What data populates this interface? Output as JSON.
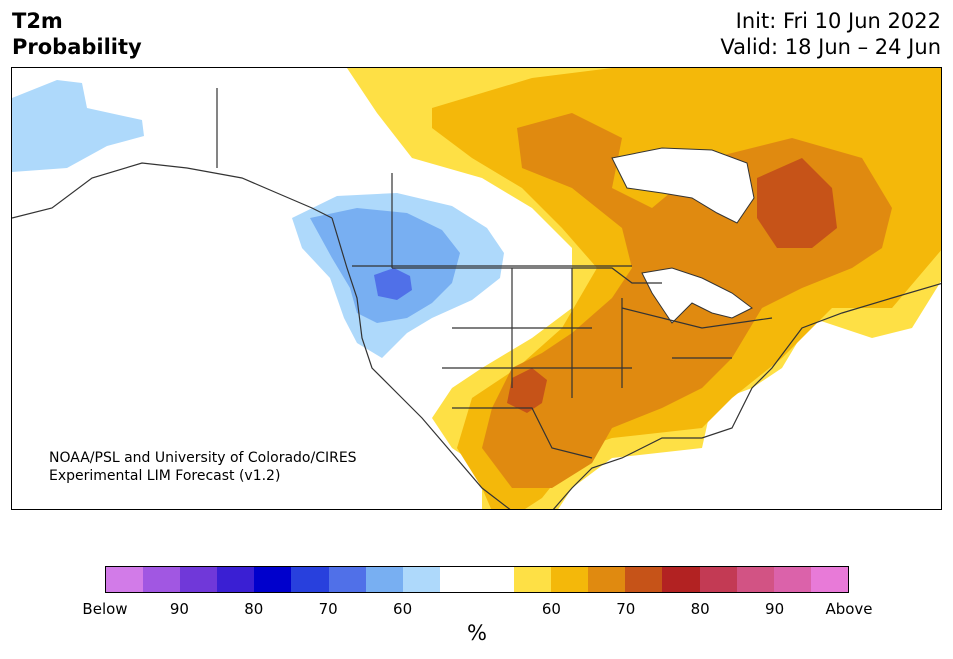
{
  "header": {
    "variable": "T2m",
    "kind": "Probability",
    "init": "Init: Fri 10 Jun 2022",
    "valid": "Valid: 18 Jun – 24 Jun"
  },
  "credit": {
    "line1": "NOAA/PSL and University of Colorado/CIRES",
    "line2": "Experimental LIM Forecast (v1.2)"
  },
  "colorbar": {
    "colors": [
      "#d27be8",
      "#a157e2",
      "#7038d9",
      "#3a1fd3",
      "#0000cc",
      "#2840dd",
      "#5070e8",
      "#78aff2",
      "#aed9fb",
      "#ffffff",
      "#ffffff",
      "#fee045",
      "#f4b80a",
      "#e08a10",
      "#c65318",
      "#b22222",
      "#c33a54",
      "#d25384",
      "#db62aa",
      "#e87ad8"
    ],
    "ticks": [
      {
        "label": "Below",
        "frac": 0.0
      },
      {
        "label": "90",
        "frac": 0.1
      },
      {
        "label": "80",
        "frac": 0.2
      },
      {
        "label": "70",
        "frac": 0.3
      },
      {
        "label": "60",
        "frac": 0.4
      },
      {
        "label": "60",
        "frac": 0.6
      },
      {
        "label": "70",
        "frac": 0.7
      },
      {
        "label": "80",
        "frac": 0.8
      },
      {
        "label": "90",
        "frac": 0.9
      },
      {
        "label": "Above",
        "frac": 1.0
      }
    ],
    "unit": "%"
  }
}
